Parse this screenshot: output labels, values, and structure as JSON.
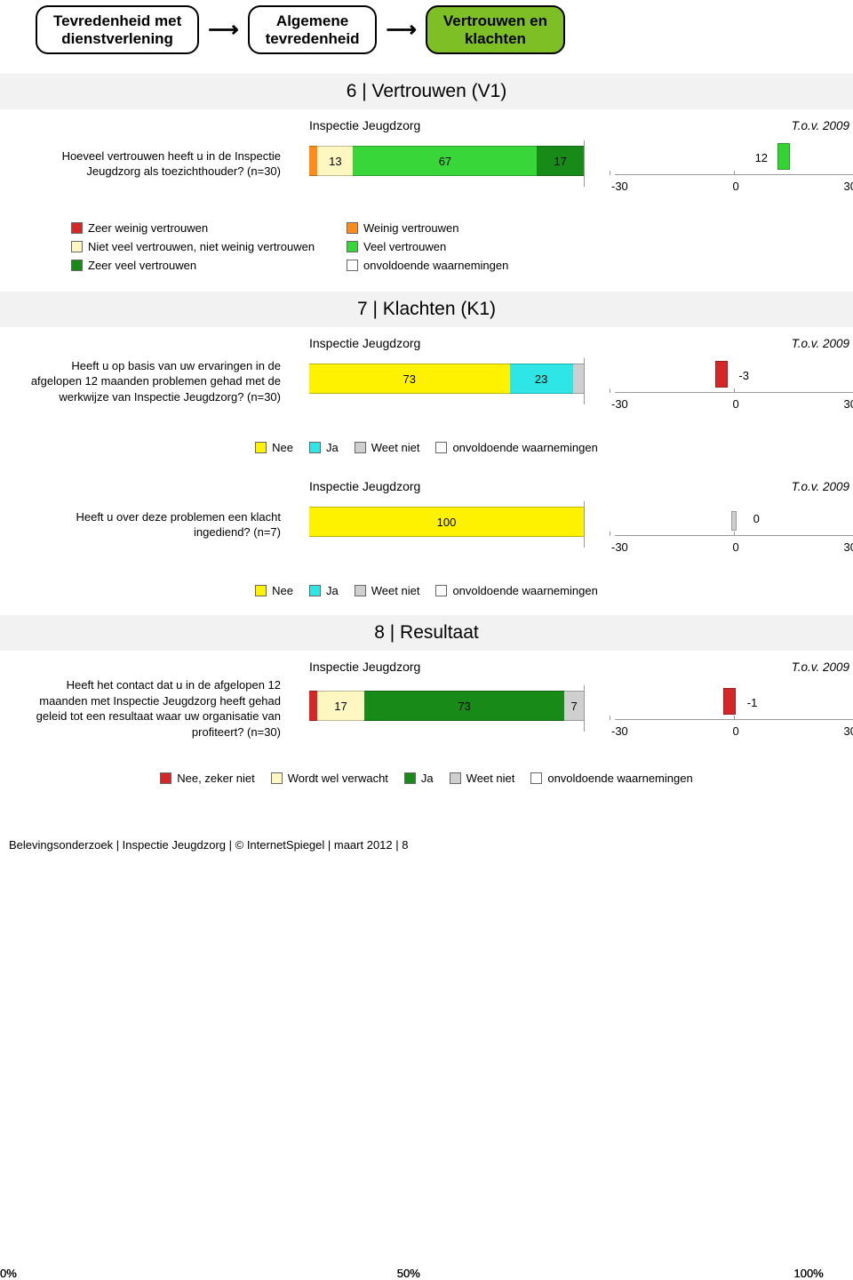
{
  "nav": {
    "box1_line1": "Tevredenheid met",
    "box1_line2": "dienstverlening",
    "box2_line1": "Algemene",
    "box2_line2": "tevredenheid",
    "box3_line1": "Vertrouwen en",
    "box3_line2": "klachten",
    "active_bg": "#7fbf26"
  },
  "colors": {
    "red": "#d62728",
    "orange": "#ff8c1a",
    "cream": "#fff7c2",
    "midgreen": "#39d639",
    "darkgreen": "#178a17",
    "yellow": "#fff200",
    "cyan": "#2ee6e6",
    "grey": "#cfcfcf",
    "white": "#ffffff",
    "section_bg": "#f2f2f2",
    "diff_green": "#34d334",
    "diff_red": "#d62728"
  },
  "axis": {
    "bar_ticks": [
      "0%",
      "50%",
      "100%"
    ],
    "diff_ticks": [
      "-30",
      "0",
      "30"
    ],
    "diff_min": -30,
    "diff_max": 30
  },
  "sections": {
    "s6": {
      "title": "6 | Vertrouwen (V1)",
      "header_left": "Inspectie Jeugdzorg",
      "header_right": "T.o.v. 2009",
      "question": "Hoeveel vertrouwen heeft u in de Inspectie Jeugdzorg als toezichthouder? (n=30)",
      "segments": [
        {
          "value": 3,
          "label": "",
          "color": "#ff8c1a"
        },
        {
          "value": 13,
          "label": "13",
          "color": "#fff7c2"
        },
        {
          "value": 67,
          "label": "67",
          "color": "#39d639"
        },
        {
          "value": 17,
          "label": "17",
          "color": "#178a17"
        }
      ],
      "diff": {
        "value": 12,
        "label": "12",
        "color": "#34d334"
      },
      "legend": [
        {
          "label": "Zeer weinig vertrouwen",
          "color": "#d62728"
        },
        {
          "label": "Weinig vertrouwen",
          "color": "#ff8c1a"
        },
        {
          "label": "Niet veel vertrouwen, niet weinig vertrouwen",
          "color": "#fff7c2"
        },
        {
          "label": "Veel vertrouwen",
          "color": "#39d639"
        },
        {
          "label": "Zeer veel vertrouwen",
          "color": "#178a17"
        },
        {
          "label": "onvoldoende waarnemingen",
          "color": "#ffffff"
        }
      ]
    },
    "s7": {
      "title": "7 | Klachten (K1)",
      "charts": [
        {
          "header_left": "Inspectie Jeugdzorg",
          "header_right": "T.o.v. 2009",
          "question": "Heeft u op basis van uw ervaringen in de afgelopen 12 maanden problemen gehad met de werkwijze van Inspectie Jeugdzorg? (n=30)",
          "segments": [
            {
              "value": 73,
              "label": "73",
              "color": "#fff200"
            },
            {
              "value": 23,
              "label": "23",
              "color": "#2ee6e6"
            },
            {
              "value": 4,
              "label": "",
              "color": "#cfcfcf"
            }
          ],
          "diff": {
            "value": -3,
            "label": "-3",
            "color": "#d62728"
          }
        },
        {
          "header_left": "Inspectie Jeugdzorg",
          "header_right": "T.o.v. 2009",
          "question": "Heeft u over deze problemen een klacht ingediend? (n=7)",
          "segments": [
            {
              "value": 100,
              "label": "100",
              "color": "#fff200"
            }
          ],
          "diff": {
            "value": 0,
            "label": "0",
            "color": "#cfcfcf"
          }
        }
      ],
      "legend": [
        {
          "label": "Nee",
          "color": "#fff200"
        },
        {
          "label": "Ja",
          "color": "#2ee6e6"
        },
        {
          "label": "Weet niet",
          "color": "#cfcfcf"
        },
        {
          "label": "onvoldoende waarnemingen",
          "color": "#ffffff"
        }
      ]
    },
    "s8": {
      "title": "8 | Resultaat",
      "header_left": "Inspectie Jeugdzorg",
      "header_right": "T.o.v. 2009",
      "question": "Heeft het contact dat u in de afgelopen 12 maanden met Inspectie Jeugdzorg heeft gehad geleid tot een resultaat waar uw organisatie van profiteert? (n=30)",
      "segments": [
        {
          "value": 3,
          "label": "",
          "color": "#d62728"
        },
        {
          "value": 17,
          "label": "17",
          "color": "#fff7c2"
        },
        {
          "value": 73,
          "label": "73",
          "color": "#178a17"
        },
        {
          "value": 7,
          "label": "7",
          "color": "#cfcfcf"
        }
      ],
      "diff": {
        "value": -1,
        "label": "-1",
        "color": "#d62728"
      },
      "legend": [
        {
          "label": "Nee, zeker niet",
          "color": "#d62728"
        },
        {
          "label": "Wordt wel verwacht",
          "color": "#fff7c2"
        },
        {
          "label": "Ja",
          "color": "#178a17"
        },
        {
          "label": "Weet niet",
          "color": "#cfcfcf"
        },
        {
          "label": "onvoldoende waarnemingen",
          "color": "#ffffff"
        }
      ]
    }
  },
  "footer": "Belevingsonderzoek | Inspectie Jeugdzorg | © InternetSpiegel | maart 2012 | 8"
}
